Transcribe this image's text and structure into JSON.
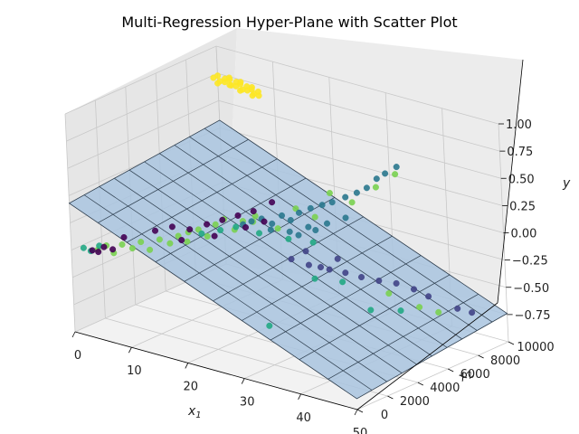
{
  "chart_data": {
    "type": "scatter",
    "projection": "3d",
    "title": "Multi-Regression Hyper-Plane with Scatter Plot",
    "xlabel": "x",
    "xlabel_sub": "1",
    "ylabel": "x",
    "ylabel_sub": "2",
    "zlabel": "y",
    "xlim": [
      0,
      50
    ],
    "ylim": [
      0,
      10000
    ],
    "zlim": [
      -1,
      1
    ],
    "xticks": [
      "0",
      "10",
      "20",
      "30",
      "40",
      "50"
    ],
    "yticks": [
      "0",
      "2000",
      "4000",
      "6000",
      "8000",
      "10000"
    ],
    "zticks": [
      "−0.75",
      "−0.50",
      "−0.25",
      "0.00",
      "0.25",
      "0.50",
      "0.75",
      "1.00"
    ],
    "grid": true,
    "colormap": "viridis",
    "surface": {
      "description": "regression plane",
      "color": "#a9c4df",
      "edgecolor": "#2a3a4a",
      "corners": [
        {
          "x1": 0,
          "x2": 0,
          "y": 0.18
        },
        {
          "x1": 50,
          "x2": 0,
          "y": -0.9
        },
        {
          "x1": 50,
          "x2": 10000,
          "y": -0.74
        },
        {
          "x1": 0,
          "x2": 10000,
          "y": 0.32
        }
      ]
    },
    "series": [
      {
        "color": "#fde725",
        "points": [
          [
            2,
            9000,
            0.8
          ],
          [
            2.5,
            9100,
            0.82
          ],
          [
            3,
            9050,
            0.78
          ],
          [
            3.5,
            9200,
            0.8
          ],
          [
            4,
            9000,
            0.79
          ],
          [
            4.5,
            9150,
            0.81
          ],
          [
            5,
            9050,
            0.77
          ],
          [
            5.5,
            9200,
            0.8
          ],
          [
            6,
            9000,
            0.78
          ],
          [
            6.5,
            9100,
            0.8
          ],
          [
            7,
            9050,
            0.76
          ],
          [
            7.5,
            9150,
            0.79
          ],
          [
            8,
            9000,
            0.77
          ],
          [
            8.5,
            9100,
            0.78
          ],
          [
            9,
            9050,
            0.75
          ],
          [
            9.5,
            9150,
            0.77
          ],
          [
            10,
            9000,
            0.75
          ],
          [
            3,
            8900,
            0.77
          ],
          [
            5,
            8950,
            0.78
          ],
          [
            7,
            8900,
            0.76
          ],
          [
            9,
            8950,
            0.74
          ],
          [
            4,
            9300,
            0.81
          ],
          [
            6,
            9300,
            0.8
          ],
          [
            8,
            9300,
            0.78
          ]
        ]
      },
      {
        "color": "#7ad151",
        "points": [
          [
            2,
            1000,
            -0.28
          ],
          [
            3,
            1200,
            -0.24
          ],
          [
            4,
            1300,
            -0.3
          ],
          [
            5,
            1500,
            -0.22
          ],
          [
            6,
            1800,
            -0.26
          ],
          [
            7,
            2000,
            -0.2
          ],
          [
            8,
            2200,
            -0.27
          ],
          [
            9,
            2500,
            -0.18
          ],
          [
            10,
            2800,
            -0.22
          ],
          [
            11,
            3000,
            -0.15
          ],
          [
            12,
            3200,
            -0.2
          ],
          [
            13,
            3600,
            -0.1
          ],
          [
            14,
            3800,
            -0.16
          ],
          [
            15,
            4000,
            -0.05
          ],
          [
            17,
            4500,
            -0.1
          ],
          [
            19,
            5000,
            -0.03
          ],
          [
            22,
            5500,
            -0.08
          ],
          [
            26,
            6500,
            0.02
          ],
          [
            30,
            7500,
            0.15
          ],
          [
            33,
            8000,
            0.3
          ],
          [
            36,
            8200,
            0.45
          ],
          [
            28,
            6800,
            0.25
          ],
          [
            40,
            6000,
            -0.45
          ],
          [
            44,
            6500,
            -0.55
          ],
          [
            46,
            7000,
            -0.6
          ],
          [
            16,
            4200,
            0.0
          ],
          [
            18,
            4700,
            -0.02
          ],
          [
            20,
            4800,
            0.05
          ],
          [
            24,
            6000,
            0.1
          ],
          [
            12,
            3300,
            -0.12
          ]
        ]
      },
      {
        "color": "#22a884",
        "points": [
          [
            0,
            800,
            -0.28
          ],
          [
            1,
            900,
            -0.3
          ],
          [
            2,
            1100,
            -0.25
          ],
          [
            13,
            3800,
            -0.15
          ],
          [
            15,
            4300,
            -0.12
          ],
          [
            17,
            4600,
            -0.08
          ],
          [
            20,
            5000,
            -0.12
          ],
          [
            23,
            5800,
            -0.18
          ],
          [
            26,
            6300,
            -0.2
          ],
          [
            28,
            2500,
            -0.7
          ],
          [
            38,
            5500,
            -0.6
          ],
          [
            42,
            6000,
            -0.58
          ],
          [
            31,
            4500,
            -0.35
          ],
          [
            34,
            5200,
            -0.38
          ]
        ]
      },
      {
        "color": "#2a788e",
        "points": [
          [
            18,
            4700,
            -0.05
          ],
          [
            19,
            4900,
            -0.02
          ],
          [
            20,
            5200,
            0.0
          ],
          [
            21,
            5500,
            -0.05
          ],
          [
            22,
            5800,
            0.02
          ],
          [
            23,
            6000,
            -0.02
          ],
          [
            24,
            6200,
            0.05
          ],
          [
            25,
            6600,
            0.08
          ],
          [
            26,
            7000,
            0.1
          ],
          [
            27,
            7300,
            0.12
          ],
          [
            28,
            7800,
            0.15
          ],
          [
            29,
            8200,
            0.18
          ],
          [
            30,
            8500,
            0.22
          ],
          [
            31,
            8800,
            0.3
          ],
          [
            32,
            9000,
            0.35
          ],
          [
            33,
            9400,
            0.4
          ],
          [
            21,
            5400,
            -0.1
          ],
          [
            23,
            5900,
            -0.12
          ],
          [
            25,
            6400,
            -0.08
          ],
          [
            27,
            6900,
            -0.05
          ],
          [
            29,
            7400,
            0.0
          ],
          [
            24,
            6100,
            -0.15
          ],
          [
            26,
            6500,
            -0.1
          ]
        ]
      },
      {
        "color": "#414487",
        "points": [
          [
            25,
            5200,
            -0.3
          ],
          [
            27,
            5600,
            -0.35
          ],
          [
            28,
            6000,
            -0.38
          ],
          [
            29,
            6200,
            -0.4
          ],
          [
            31,
            6500,
            -0.42
          ],
          [
            33,
            6800,
            -0.45
          ],
          [
            35,
            7200,
            -0.48
          ],
          [
            37,
            7600,
            -0.5
          ],
          [
            39,
            8000,
            -0.55
          ],
          [
            41,
            8200,
            -0.6
          ],
          [
            45,
            8600,
            -0.68
          ],
          [
            47,
            8800,
            -0.7
          ],
          [
            26,
            5800,
            -0.25
          ],
          [
            30,
            6400,
            -0.3
          ]
        ]
      },
      {
        "color": "#440154",
        "points": [
          [
            1,
            1000,
            -0.3
          ],
          [
            1.5,
            1200,
            -0.32
          ],
          [
            2,
            1400,
            -0.28
          ],
          [
            3,
            1600,
            -0.3
          ],
          [
            4,
            2000,
            -0.2
          ],
          [
            8,
            2600,
            -0.12
          ],
          [
            10,
            3000,
            -0.08
          ],
          [
            12,
            3400,
            -0.1
          ],
          [
            14,
            3800,
            -0.05
          ],
          [
            16,
            4100,
            0.0
          ],
          [
            18,
            4400,
            0.05
          ],
          [
            20,
            4700,
            0.1
          ],
          [
            22,
            5200,
            0.18
          ],
          [
            19,
            4500,
            -0.05
          ],
          [
            21,
            5000,
            0.0
          ],
          [
            15,
            3900,
            -0.15
          ],
          [
            11,
            3200,
            -0.2
          ]
        ]
      }
    ]
  }
}
